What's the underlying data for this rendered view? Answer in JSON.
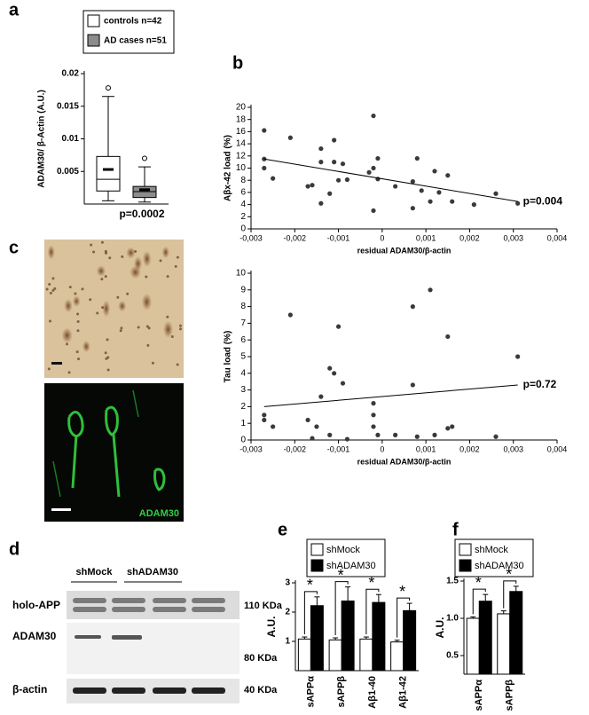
{
  "chart_data": [
    {
      "type": "box",
      "panel": "a",
      "ylabel": "ADAM30/ β-Actin (A.U.)",
      "annotation": "p=0.0002",
      "ylim": [
        0,
        0.02
      ],
      "yticks": [
        0.005,
        0.01,
        0.015,
        0.02
      ],
      "series": [
        {
          "name": "controls n=42",
          "color": "#ffffff",
          "whisker_low": 0.0005,
          "q1": 0.002,
          "median": 0.0038,
          "q3": 0.0073,
          "whisker_high": 0.0165,
          "mean": 0.0053,
          "outliers": [
            0.0178
          ]
        },
        {
          "name": "AD cases n=51",
          "color": "#8c8c8c",
          "whisker_low": 0.0003,
          "q1": 0.001,
          "median": 0.0019,
          "q3": 0.0027,
          "whisker_high": 0.0057,
          "mean": 0.0022,
          "outliers": [
            0.007
          ]
        }
      ]
    },
    {
      "type": "scatter",
      "panel": "b",
      "ylabel": "Aβx-42 load (%)",
      "xlabel": "residual ADAM30/β-actin",
      "annotation": "p=0.004",
      "xlim": [
        -0.003,
        0.004
      ],
      "ylim": [
        0,
        20
      ],
      "xticks": [
        {
          "value": -0.003,
          "label": "-0,003"
        },
        {
          "value": -0.002,
          "label": "-0,002"
        },
        {
          "value": -0.001,
          "label": "-0,001"
        },
        0,
        {
          "value": 0.001,
          "label": "0,001"
        },
        {
          "value": 0.002,
          "label": "0,002"
        },
        {
          "value": 0.003,
          "label": "0,003"
        },
        {
          "value": 0.004,
          "label": "0,004"
        }
      ],
      "yticks": [
        0,
        2,
        4,
        6,
        8,
        10,
        12,
        14,
        16,
        18,
        20
      ],
      "x": [
        -0.0027,
        -0.0027,
        -0.0027,
        -0.0025,
        -0.0021,
        -0.0017,
        -0.0016,
        -0.0014,
        -0.0014,
        -0.0014,
        -0.0012,
        -0.0011,
        -0.0011,
        -0.001,
        -0.0009,
        -0.0008,
        -0.0003,
        -0.0002,
        -0.0002,
        -0.0002,
        -0.0001,
        -0.0001,
        0.0003,
        0.0007,
        0.0007,
        0.0008,
        0.0009,
        0.0011,
        0.0012,
        0.0013,
        0.0015,
        0.0016,
        0.0021,
        0.0026,
        0.0031
      ],
      "y": [
        16.2,
        11.5,
        10,
        8.3,
        15,
        7,
        7.2,
        13.2,
        11,
        4.2,
        5.8,
        14.6,
        11,
        8,
        10.7,
        8.1,
        9.3,
        10,
        18.6,
        3,
        11.6,
        8.2,
        7,
        3.4,
        7.8,
        11.6,
        6.3,
        4.5,
        9.5,
        6,
        8.8,
        4.5,
        4,
        5.8,
        4.2
      ],
      "trend": {
        "x": [
          -0.0027,
          0.0031
        ],
        "y": [
          11.5,
          4.5
        ]
      }
    },
    {
      "type": "scatter",
      "ylabel": "Tau load (%)",
      "xlabel": "residual ADAM30/β-actin",
      "annotation": "p=0.72",
      "xlim": [
        -0.003,
        0.004
      ],
      "ylim": [
        0,
        10
      ],
      "xticks": [
        {
          "value": -0.003,
          "label": "-0,003"
        },
        {
          "value": -0.002,
          "label": "-0,002"
        },
        {
          "value": -0.001,
          "label": "-0,001"
        },
        0,
        {
          "value": 0.001,
          "label": "0,001"
        },
        {
          "value": 0.002,
          "label": "0,002"
        },
        {
          "value": 0.003,
          "label": "0,003"
        },
        {
          "value": 0.004,
          "label": "0,004"
        }
      ],
      "yticks": [
        0,
        1,
        2,
        3,
        4,
        5,
        6,
        7,
        8,
        9,
        10
      ],
      "x": [
        -0.0027,
        -0.0027,
        -0.0025,
        -0.0021,
        -0.0017,
        -0.0016,
        -0.0015,
        -0.0014,
        -0.0012,
        -0.0012,
        -0.0011,
        -0.001,
        -0.0009,
        -0.0008,
        -0.0002,
        -0.0002,
        -0.0002,
        -0.0001,
        0.0003,
        0.0007,
        0.0007,
        0.0008,
        0.0011,
        0.0012,
        0.0015,
        0.0015,
        0.0016,
        0.0026,
        0.0031
      ],
      "y": [
        1.5,
        1.2,
        0.8,
        7.5,
        1.2,
        0.1,
        0.8,
        2.6,
        4.3,
        0.3,
        4,
        6.8,
        3.4,
        0.05,
        2.2,
        1.5,
        0.8,
        0.3,
        0.3,
        3.3,
        8,
        0.2,
        9,
        0.3,
        6.2,
        0.7,
        0.8,
        0.2,
        5
      ],
      "trend": {
        "x": [
          -0.0027,
          0.0031
        ],
        "y": [
          2,
          3.3
        ]
      }
    },
    {
      "type": "bar",
      "panel": "e",
      "ylabel": "A.U.",
      "ylim": [
        0,
        3
      ],
      "yticks": [
        1,
        2,
        3
      ],
      "categories": [
        "sAPPα",
        "sAPPβ",
        "Aβ1-40",
        "Aβ1-42"
      ],
      "annotations": [
        "*",
        "*",
        "*",
        "*"
      ],
      "series": [
        {
          "name": "shMock",
          "color": "#ffffff",
          "values": [
            1.08,
            1.05,
            1.08,
            0.98
          ],
          "errors": [
            0.07,
            0.07,
            0.07,
            0.06
          ]
        },
        {
          "name": "shADAM30",
          "color": "#000000",
          "values": [
            2.22,
            2.38,
            2.33,
            2.05
          ],
          "errors": [
            0.3,
            0.48,
            0.27,
            0.25
          ]
        }
      ]
    },
    {
      "type": "bar",
      "panel": "f",
      "ylabel": "A.U.",
      "ylim": [
        0.25,
        1.5
      ],
      "yticks": [
        {
          "value": 0.5,
          "label": "0.5"
        },
        {
          "value": 1,
          "label": "1.0"
        },
        {
          "value": 1.5,
          "label": "1.5"
        }
      ],
      "categories": [
        "sAPPα",
        "sAPPβ"
      ],
      "annotations": [
        "*",
        "*"
      ],
      "series": [
        {
          "name": "shMock",
          "color": "#ffffff",
          "values": [
            1.0,
            1.06
          ],
          "errors": [
            0.02,
            0.04
          ]
        },
        {
          "name": "shADAM30",
          "color": "#000000",
          "values": [
            1.23,
            1.36
          ],
          "errors": [
            0.09,
            0.07
          ]
        }
      ]
    }
  ],
  "images": {
    "panel": "c",
    "stain": "ADAM30"
  },
  "blot": {
    "panel": "d",
    "lanes": [
      "shMock",
      "shADAM30"
    ],
    "rows": [
      {
        "name": "holo-APP",
        "size": "110 KDa"
      },
      {
        "name": "ADAM30",
        "size": "80 KDa"
      },
      {
        "name": "β-actin",
        "size": "40 KDa"
      }
    ]
  }
}
